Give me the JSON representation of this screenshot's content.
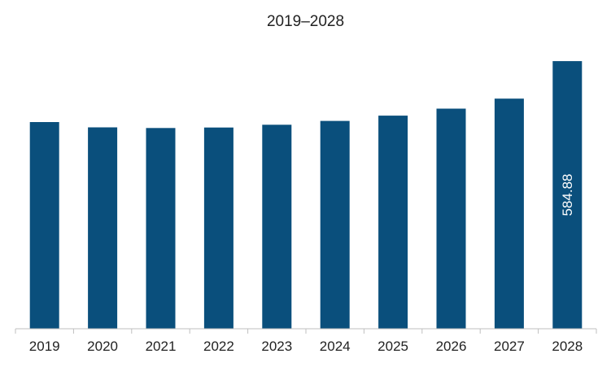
{
  "chart_data": {
    "type": "bar",
    "title": "2019–2028",
    "categories": [
      "2019",
      "2020",
      "2021",
      "2022",
      "2023",
      "2024",
      "2025",
      "2026",
      "2027",
      "2028"
    ],
    "values": [
      451.7,
      440.0,
      438.7,
      439.8,
      445.8,
      454.1,
      465.6,
      481.0,
      502.9,
      584.88
    ],
    "data_labels": [
      "",
      "",
      "",
      "",
      "",
      "",
      "",
      "",
      "",
      "584.88"
    ],
    "xlabel": "",
    "ylabel": "",
    "ylim": [
      0,
      617
    ],
    "grid": false,
    "legend": "none",
    "bar_color": "#0a4f7c",
    "axis_color": "#bfbfbf"
  }
}
